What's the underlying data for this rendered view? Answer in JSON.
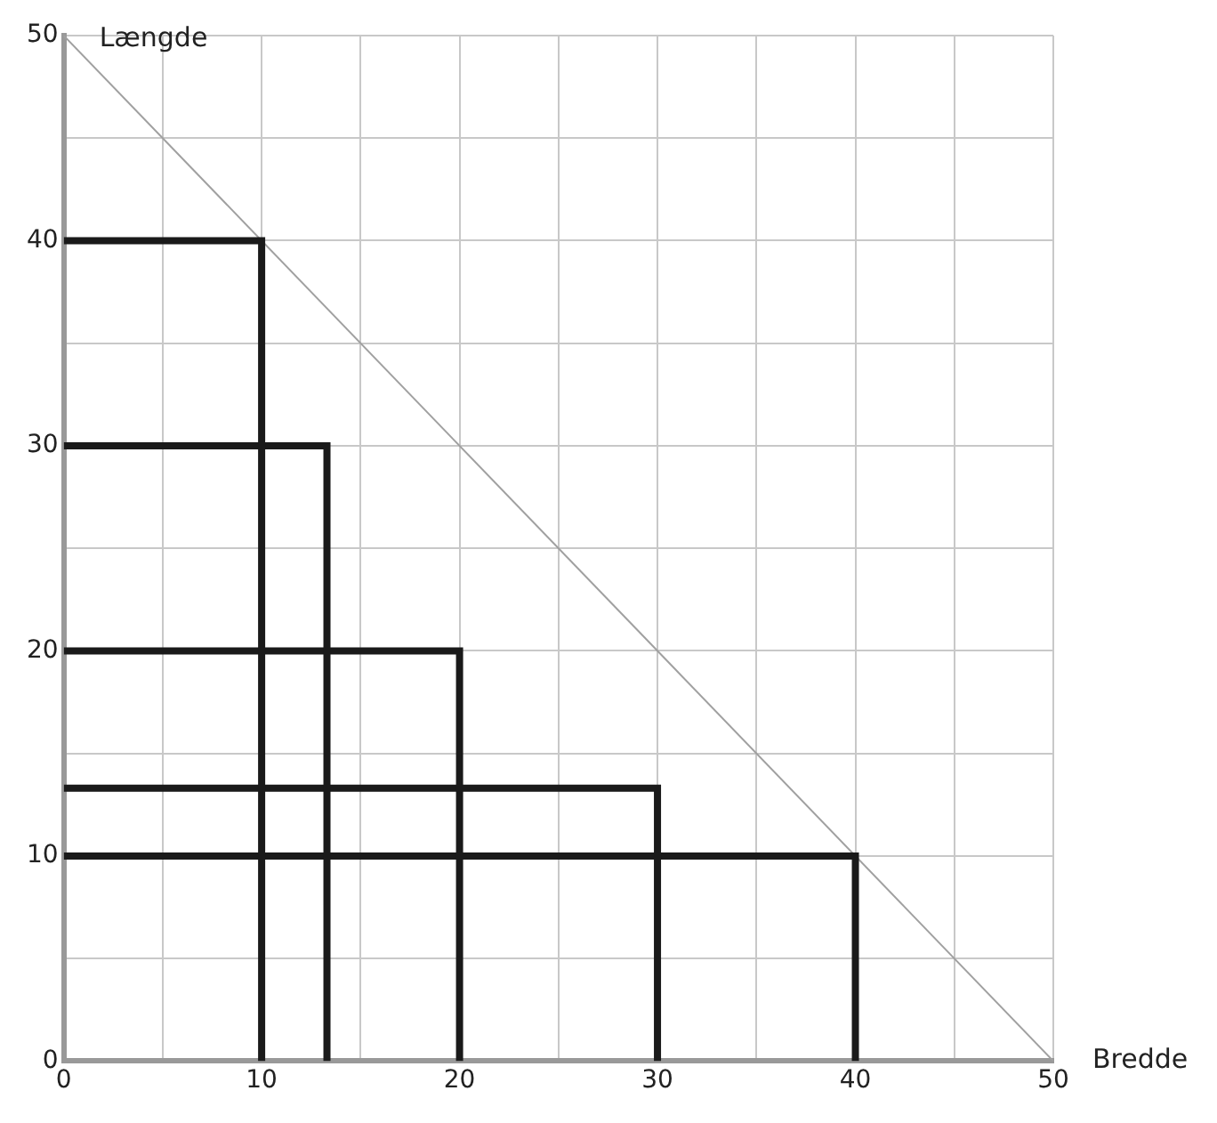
{
  "chart_data": {
    "type": "line",
    "xlabel": "Bredde",
    "ylabel": "Længde",
    "xlim": [
      0,
      50
    ],
    "ylim": [
      0,
      50
    ],
    "xticks": [
      0,
      {
        "value": 5,
        "label": null
      },
      10,
      {
        "value": 15,
        "label": null
      },
      20,
      {
        "value": 25,
        "label": null
      },
      30,
      {
        "value": 35,
        "label": null
      },
      40,
      {
        "value": 45,
        "label": null
      },
      50
    ],
    "yticks": [
      0,
      {
        "value": 5,
        "label": null
      },
      10,
      {
        "value": 15,
        "label": null
      },
      20,
      {
        "value": 25,
        "label": null
      },
      30,
      {
        "value": 35,
        "label": null
      },
      40,
      {
        "value": 45,
        "label": null
      },
      50
    ],
    "grid": true,
    "legend": false,
    "marker": "none",
    "line_style": "solid",
    "series": [
      {
        "color": "#1a1a1a",
        "x": [
          0,
          10,
          10
        ],
        "values": [
          40,
          40,
          0
        ]
      },
      {
        "color": "#1a1a1a",
        "x": [
          0,
          13.3,
          13.3
        ],
        "values": [
          30,
          30,
          0
        ]
      },
      {
        "color": "#1a1a1a",
        "x": [
          0,
          20,
          20
        ],
        "values": [
          20,
          20,
          0
        ]
      },
      {
        "color": "#1a1a1a",
        "x": [
          0,
          30,
          30
        ],
        "values": [
          13.3,
          13.3,
          0
        ]
      },
      {
        "color": "#1a1a1a",
        "x": [
          0,
          40,
          40
        ],
        "values": [
          10,
          10,
          0
        ]
      },
      {
        "color": "#a0a0a0",
        "x": [
          0,
          50
        ],
        "values": [
          50,
          0
        ]
      }
    ]
  }
}
